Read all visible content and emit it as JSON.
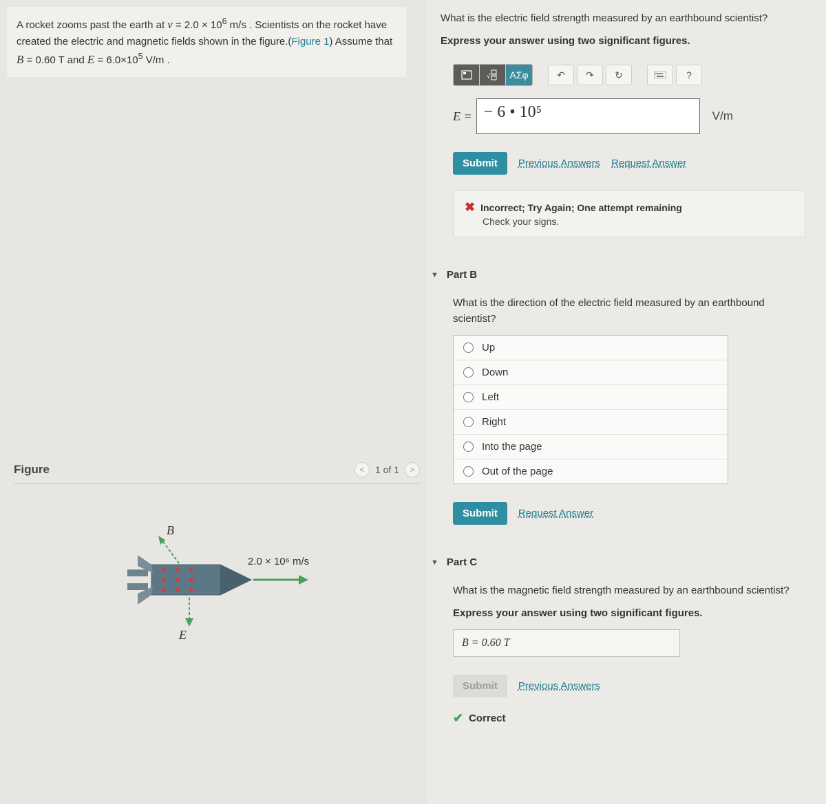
{
  "problem": {
    "html": "A rocket zooms past the earth at <span class='italicv'>v</span> = 2.0 × 10<sup>6</sup> m/s . Scientists on the rocket have created the electric and magnetic fields shown in the figure.(<a href='#' data-name='figure-link' data-interactable='true'>Figure 1</a>) Assume that <span class='italicv'>B</span> = 0.60 T and <span class='italicv'>E</span> = 6.0×10<sup>5</sup> V/m ."
  },
  "figure": {
    "title": "Figure",
    "pager": "1 of 1",
    "B_label": "B",
    "E_label": "E",
    "velocity_label": "2.0 × 10⁶ m/s"
  },
  "partA": {
    "question": "What is the electric field strength measured by an earthbound scientist?",
    "instruction": "Express your answer using two significant figures.",
    "eq_label": "E =",
    "input_value": "− 6 • 10⁵",
    "unit": "V/m",
    "submit": "Submit",
    "prev_link": "Previous Answers",
    "req_link": "Request Answer",
    "feedback_title": "Incorrect; Try Again; One attempt remaining",
    "feedback_sub": "Check your signs.",
    "toolbar": {
      "greek": "ΑΣφ",
      "help": "?"
    }
  },
  "partB": {
    "title": "Part B",
    "question": "What is the direction of the electric field measured by an earthbound scientist?",
    "options": [
      "Up",
      "Down",
      "Left",
      "Right",
      "Into the page",
      "Out of the page"
    ],
    "submit": "Submit",
    "req_link": "Request Answer"
  },
  "partC": {
    "title": "Part C",
    "question": "What is the magnetic field strength measured by an earthbound scientist?",
    "instruction": "Express your answer using two significant figures.",
    "answer": "B =  0.60  T",
    "submit": "Submit",
    "prev_link": "Previous Answers",
    "correct": "Correct"
  }
}
